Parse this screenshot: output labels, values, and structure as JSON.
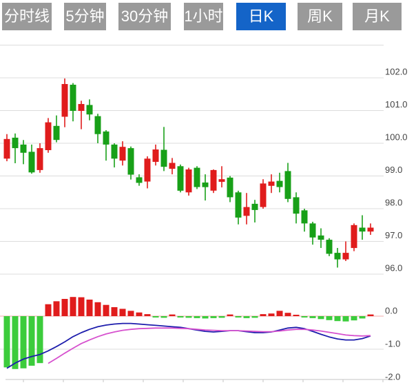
{
  "toolbar": {
    "tabs": [
      {
        "label": "分时线",
        "active": false
      },
      {
        "label": "5分钟",
        "active": false
      },
      {
        "label": "30分钟",
        "active": false
      },
      {
        "label": "1小时",
        "active": false
      },
      {
        "label": "日K",
        "active": true
      },
      {
        "label": "周K",
        "active": false
      },
      {
        "label": "月K",
        "active": false
      }
    ]
  },
  "colors": {
    "tab_bg": "#9a9a9a",
    "tab_active_bg": "#1464c8",
    "tab_text": "#ffffff",
    "candle_up": "#e01c1c",
    "candle_down": "#18a018",
    "macd_up": "#e01c1c",
    "macd_down": "#3ccc3c",
    "dif_line": "#1c1cac",
    "dea_line": "#d650ce",
    "grid": "#dcdcdc",
    "zero_line": "#f0aaaa",
    "bottom_axis": "#c4c4c4",
    "axis_text": "#444444"
  },
  "chart_data": {
    "type": "candlestick",
    "title": "",
    "grid": true,
    "legend": "none",
    "panels": [
      "price-kline",
      "macd"
    ],
    "main_panel": {
      "yticks": [
        102.0,
        101.0,
        100.0,
        99.0,
        98.0,
        97.0,
        96.0
      ],
      "ytick_labels": [
        "102.0",
        "101.0",
        "100.0",
        "99.0",
        "98.0",
        "97.0",
        "96.0"
      ],
      "ylim": [
        95.6,
        103.0
      ],
      "candles_ohlc": [
        [
          99.53,
          100.28,
          99.45,
          100.13
        ],
        [
          100.17,
          100.3,
          99.39,
          99.85
        ],
        [
          99.96,
          100.1,
          99.36,
          99.71
        ],
        [
          99.74,
          99.96,
          99.07,
          99.11
        ],
        [
          99.18,
          100.0,
          99.1,
          99.85
        ],
        [
          99.79,
          100.77,
          99.71,
          100.64
        ],
        [
          100.53,
          100.85,
          100.03,
          100.1
        ],
        [
          100.81,
          101.98,
          100.49,
          101.81
        ],
        [
          101.79,
          101.84,
          100.67,
          100.99
        ],
        [
          100.99,
          101.3,
          100.43,
          101.2
        ],
        [
          101.17,
          101.34,
          100.7,
          100.88
        ],
        [
          100.83,
          100.9,
          100.0,
          100.28
        ],
        [
          100.36,
          100.4,
          99.47,
          99.96
        ],
        [
          99.96,
          100.0,
          99.26,
          99.53
        ],
        [
          99.47,
          100.06,
          99.32,
          99.89
        ],
        [
          99.85,
          99.9,
          98.89,
          99.04
        ],
        [
          98.96,
          99.05,
          98.7,
          98.79
        ],
        [
          98.83,
          99.6,
          98.62,
          99.53
        ],
        [
          99.43,
          99.96,
          99.32,
          99.81
        ],
        [
          99.8,
          100.5,
          99.15,
          99.28
        ],
        [
          99.22,
          99.55,
          99.05,
          99.4
        ],
        [
          99.3,
          99.35,
          98.5,
          98.55
        ],
        [
          98.5,
          99.25,
          98.4,
          99.2
        ],
        [
          99.25,
          99.3,
          98.6,
          98.66
        ],
        [
          98.8,
          99.05,
          98.25,
          98.66
        ],
        [
          98.55,
          99.2,
          98.48,
          99.18
        ],
        [
          98.82,
          99.3,
          98.65,
          98.9
        ],
        [
          98.95,
          99.0,
          98.2,
          98.35
        ],
        [
          98.5,
          98.55,
          97.52,
          97.73
        ],
        [
          97.78,
          98.48,
          97.52,
          98.05
        ],
        [
          98.15,
          98.27,
          97.58,
          97.96
        ],
        [
          98.05,
          98.9,
          98.0,
          98.77
        ],
        [
          98.7,
          99.05,
          98.48,
          98.83
        ],
        [
          98.85,
          99.1,
          98.5,
          98.66
        ],
        [
          99.15,
          99.4,
          98.2,
          98.3
        ],
        [
          98.35,
          98.5,
          97.55,
          97.85
        ],
        [
          97.95,
          98.0,
          97.3,
          97.55
        ],
        [
          97.55,
          97.6,
          96.9,
          97.12
        ],
        [
          97.18,
          97.4,
          96.8,
          97.05
        ],
        [
          97.05,
          97.1,
          96.55,
          96.62
        ],
        [
          96.65,
          96.8,
          96.2,
          96.45
        ],
        [
          96.45,
          97.0,
          96.4,
          96.65
        ],
        [
          96.8,
          97.55,
          96.7,
          97.5
        ],
        [
          97.42,
          97.8,
          97.05,
          97.3
        ],
        [
          97.3,
          97.55,
          97.2,
          97.42
        ]
      ]
    },
    "macd_panel": {
      "yticks": [
        0.0,
        -1.0,
        -2.0
      ],
      "ytick_labels": [
        "0.0",
        "-1.0",
        "-2.0"
      ],
      "ylim": [
        -2.1,
        0.7
      ],
      "histogram": [
        -1.55,
        -1.6,
        -1.58,
        -1.5,
        -1.42,
        0.36,
        0.45,
        0.52,
        0.58,
        0.57,
        0.5,
        0.42,
        0.34,
        0.27,
        0.22,
        0.16,
        0.11,
        0.06,
        -0.04,
        -0.05,
        0.05,
        -0.03,
        -0.05,
        -0.06,
        -0.07,
        -0.06,
        -0.05,
        0.05,
        -0.04,
        -0.06,
        -0.05,
        0.06,
        0.08,
        0.16,
        0.1,
        0.04,
        -0.03,
        -0.06,
        -0.09,
        -0.12,
        -0.15,
        -0.16,
        -0.13,
        -0.07,
        0.05
      ],
      "dif": [
        -1.58,
        -1.42,
        -1.3,
        -1.22,
        -1.16,
        -1.05,
        -0.92,
        -0.78,
        -0.62,
        -0.5,
        -0.4,
        -0.32,
        -0.27,
        -0.24,
        -0.22,
        -0.22,
        -0.24,
        -0.26,
        -0.28,
        -0.3,
        -0.32,
        -0.34,
        -0.38,
        -0.42,
        -0.46,
        -0.48,
        -0.46,
        -0.44,
        -0.44,
        -0.47,
        -0.5,
        -0.5,
        -0.48,
        -0.42,
        -0.36,
        -0.34,
        -0.38,
        -0.46,
        -0.55,
        -0.63,
        -0.69,
        -0.72,
        -0.72,
        -0.68,
        -0.6
      ],
      "dea": [
        null,
        null,
        null,
        null,
        null,
        -1.43,
        -1.28,
        -1.12,
        -0.97,
        -0.83,
        -0.72,
        -0.62,
        -0.54,
        -0.48,
        -0.43,
        -0.4,
        -0.38,
        -0.37,
        -0.36,
        -0.36,
        -0.36,
        -0.37,
        -0.38,
        -0.4,
        -0.42,
        -0.43,
        -0.44,
        -0.44,
        -0.44,
        -0.45,
        -0.46,
        -0.47,
        -0.47,
        -0.45,
        -0.42,
        -0.4,
        -0.4,
        -0.42,
        -0.45,
        -0.49,
        -0.53,
        -0.57,
        -0.59,
        -0.6,
        -0.59
      ]
    }
  }
}
